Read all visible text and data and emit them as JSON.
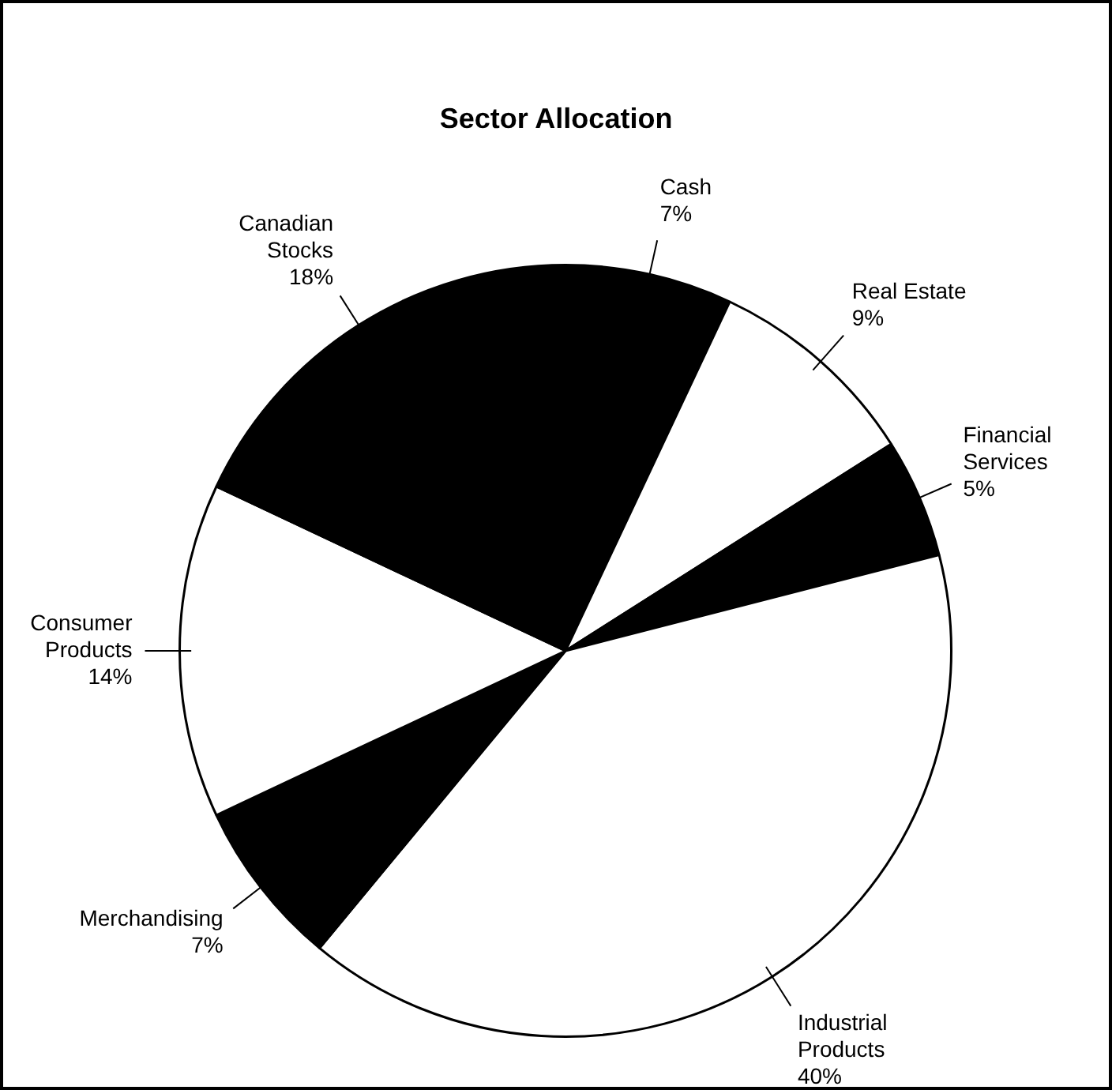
{
  "chart_data": {
    "type": "pie",
    "title": "Sector Allocation",
    "categories": [
      "Cash",
      "Real Estate",
      "Financial Services",
      "Industrial Products",
      "Merchandising",
      "Consumer Products",
      "Canadian Stocks"
    ],
    "values": [
      7,
      9,
      5,
      40,
      7,
      14,
      18
    ],
    "value_labels": [
      "7%",
      "9%",
      "5%",
      "40%",
      "7%",
      "14%",
      "18%"
    ],
    "colors": [
      "#000000",
      "#ffffff",
      "#000000",
      "#ffffff",
      "#000000",
      "#ffffff",
      "#000000"
    ],
    "legend": false
  }
}
